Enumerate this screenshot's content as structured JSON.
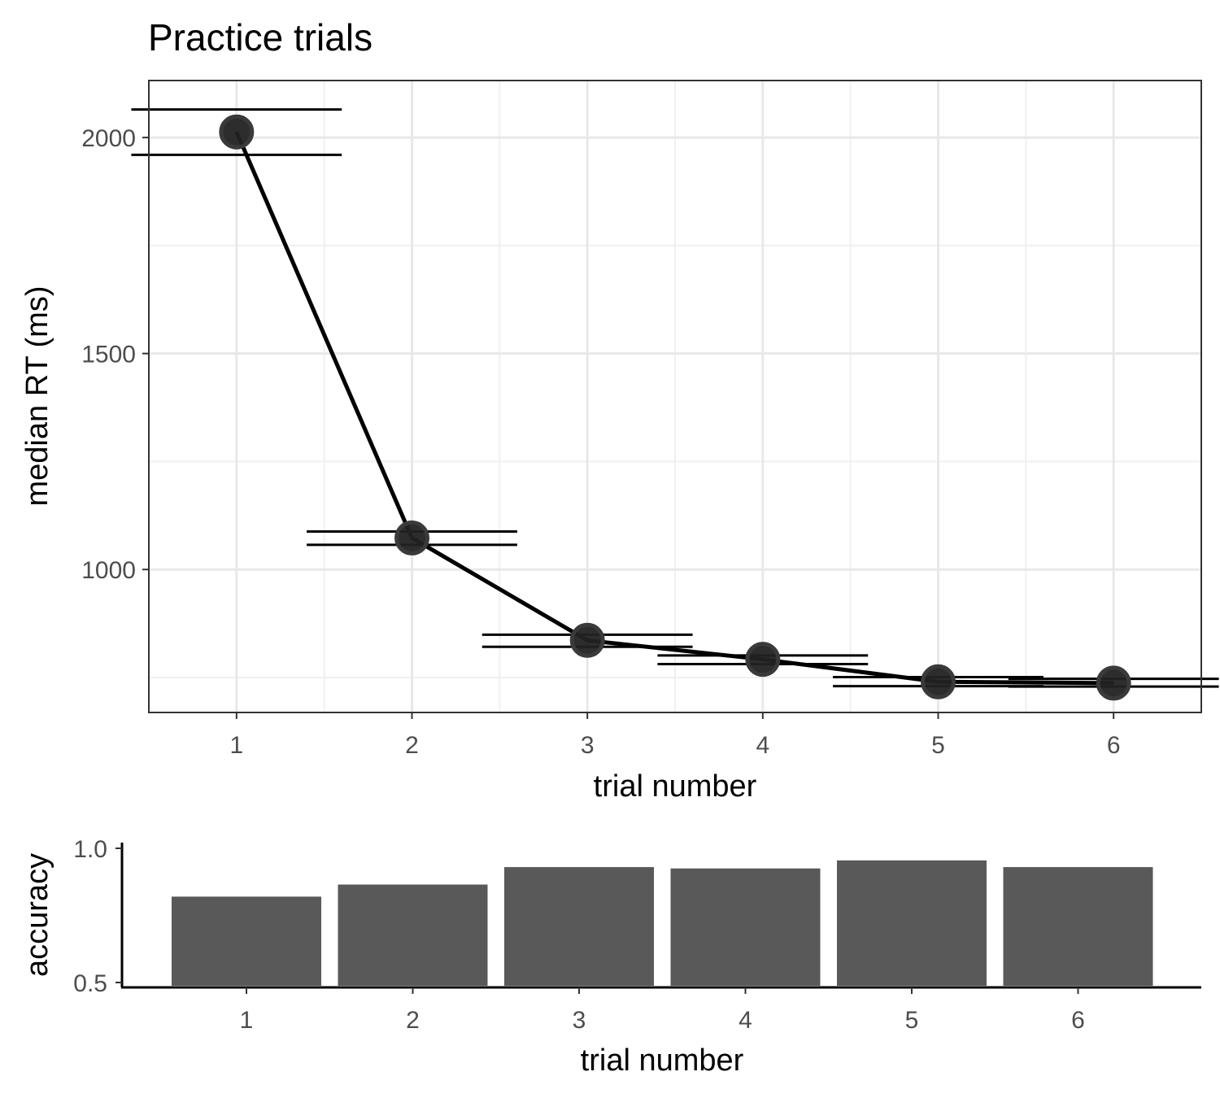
{
  "figure": {
    "title": "Practice trials"
  },
  "chart_data": [
    {
      "type": "line",
      "title": "Practice trials",
      "xlabel": "trial number",
      "ylabel": "median RT (ms)",
      "x": [
        1,
        2,
        3,
        4,
        5,
        6
      ],
      "y": [
        2013,
        1073,
        836,
        792,
        740,
        737
      ],
      "error_x": [
        [
          1,
          2,
          3,
          4,
          5,
          6
        ],
        [
          1,
          2,
          3,
          4,
          5,
          6
        ]
      ],
      "error_bars": [
        {
          "x": 1,
          "lower": 1960,
          "upper": 2065
        },
        {
          "x": 2,
          "lower": 1057,
          "upper": 1088
        },
        {
          "x": 3,
          "lower": 821,
          "upper": 849
        },
        {
          "x": 4,
          "lower": 781,
          "upper": 801
        },
        {
          "x": 5,
          "lower": 730,
          "upper": 751
        },
        {
          "x": 6,
          "lower": 729,
          "upper": 747
        }
      ],
      "xticks": [
        "1",
        "2",
        "3",
        "4",
        "5",
        "6"
      ],
      "yticks": [
        1000,
        1500,
        2000
      ],
      "xlim": [
        0.5,
        6.5
      ],
      "ylim": [
        669,
        2132
      ],
      "grid": true,
      "point_color": "#222222",
      "line_color": "#000000"
    },
    {
      "type": "bar",
      "xlabel": "trial number",
      "ylabel": "accuracy",
      "categories": [
        "1",
        "2",
        "3",
        "4",
        "5",
        "6"
      ],
      "values": [
        0.82,
        0.865,
        0.93,
        0.925,
        0.955,
        0.93
      ],
      "yticks": [
        "0.5",
        "1.0"
      ],
      "ylim": [
        0.5,
        1.0
      ],
      "grid": false,
      "bar_color": "#595959"
    }
  ]
}
